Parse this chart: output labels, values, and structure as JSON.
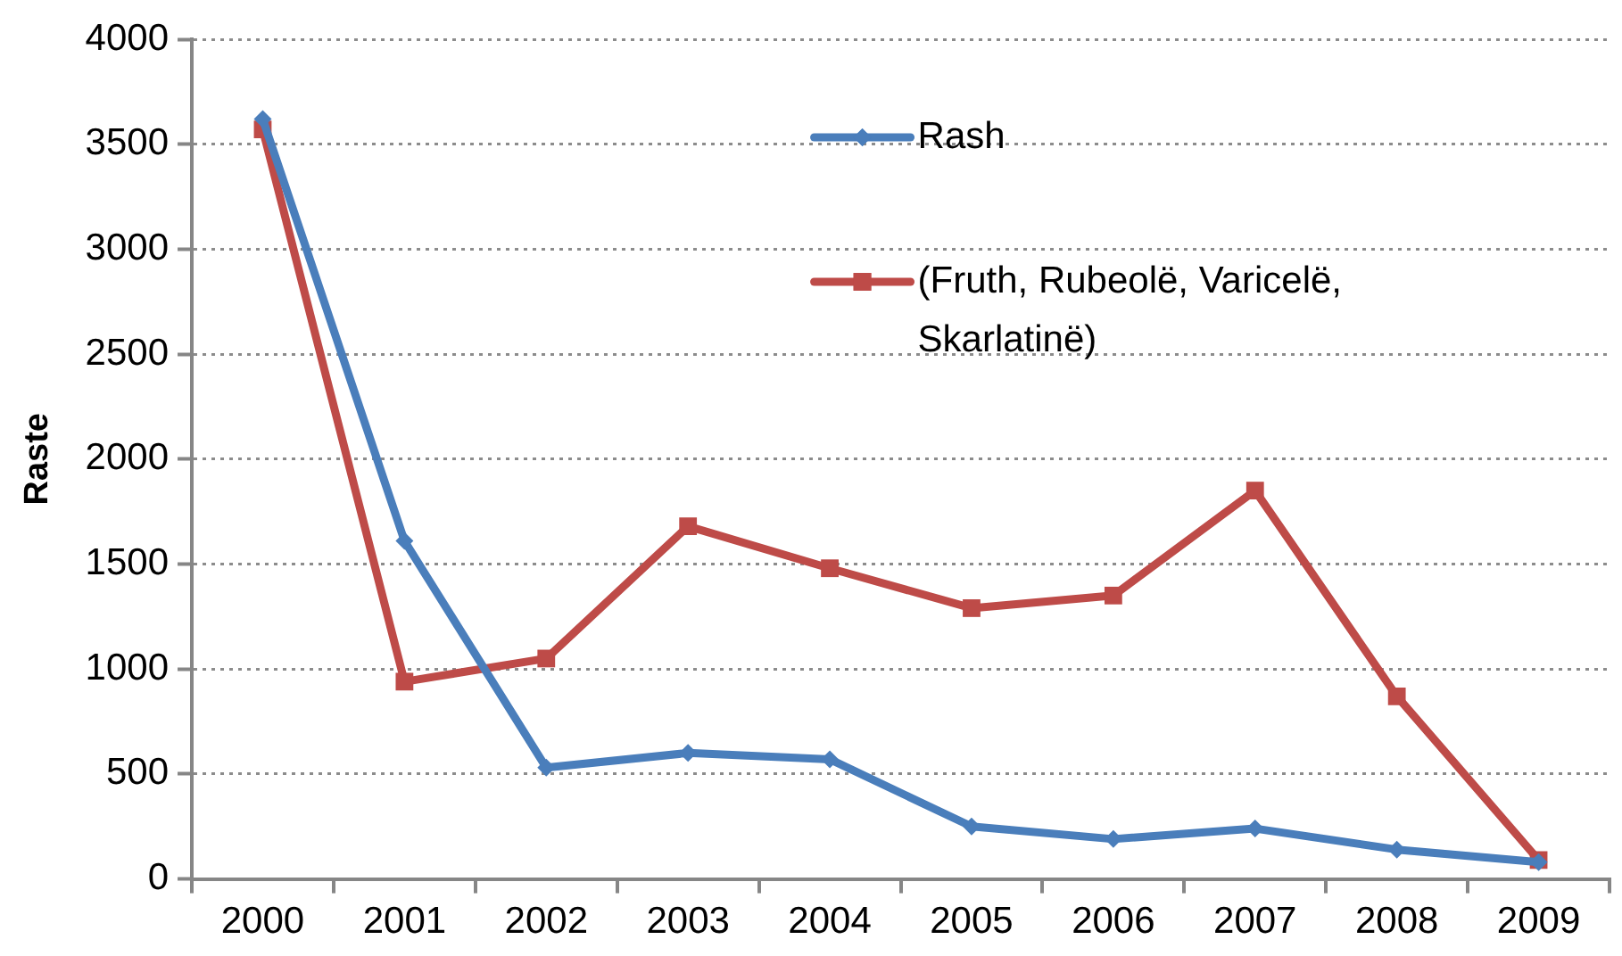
{
  "chart_data": {
    "type": "line",
    "ylabel": "Raste",
    "categories": [
      "2000",
      "2001",
      "2002",
      "2003",
      "2004",
      "2005",
      "2006",
      "2007",
      "2008",
      "2009"
    ],
    "series": [
      {
        "name": "Rash",
        "color": "#4a7ebb",
        "marker": "diamond",
        "values": [
          3620,
          1610,
          530,
          600,
          570,
          250,
          190,
          240,
          140,
          80
        ]
      },
      {
        "name": "(Fruth, Rubeolë, Varicelë, Skarlatinë)",
        "color": "#be4b48",
        "marker": "square",
        "values": [
          3570,
          940,
          1050,
          1680,
          1480,
          1290,
          1350,
          1850,
          870,
          90
        ]
      }
    ],
    "ylim": [
      0,
      4000
    ],
    "yticks": [
      0,
      500,
      1000,
      1500,
      2000,
      2500,
      3000,
      3500,
      4000
    ],
    "grid": "y",
    "legend": "top right"
  }
}
